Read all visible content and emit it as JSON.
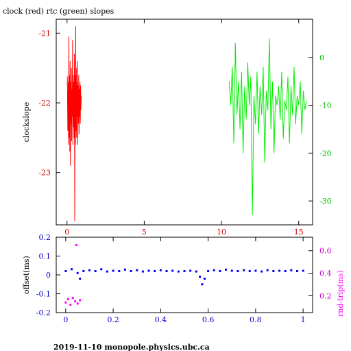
{
  "page": {
    "title": "clock (red) rtc (green) slopes",
    "footer": "2019-11-10  monopole.physics.ubc.ca"
  },
  "colors": {
    "clock": "#ff0000",
    "rtc": "#00ee00",
    "offset": "#0000ff",
    "rndtrip": "#ff00ff",
    "axis": "#000000"
  },
  "chart_data": [
    {
      "type": "line",
      "title": "clock (red) rtc (green) slopes",
      "xlabel": "",
      "ylabel": "clockslope",
      "xlim": [
        -0.7,
        15.9
      ],
      "ylim": [
        -23.75,
        -20.8
      ],
      "y2lim": [
        -35,
        8
      ],
      "xticks": [
        0,
        5,
        10,
        15
      ],
      "yticks": [
        -21,
        -22,
        -23
      ],
      "y2ticks": [
        0,
        -10,
        -20,
        -30
      ],
      "series": [
        {
          "name": "clock",
          "axis": "left",
          "color": "#ff0000",
          "x": [
            0.02,
            0.05,
            0.08,
            0.1,
            0.12,
            0.14,
            0.16,
            0.18,
            0.2,
            0.22,
            0.24,
            0.26,
            0.28,
            0.3,
            0.32,
            0.34,
            0.36,
            0.38,
            0.4,
            0.42,
            0.44,
            0.46,
            0.48,
            0.5,
            0.52,
            0.54,
            0.56,
            0.58,
            0.6,
            0.62,
            0.64,
            0.66,
            0.68,
            0.7,
            0.72,
            0.74,
            0.76,
            0.78,
            0.8,
            0.82,
            0.84,
            0.86,
            0.88,
            0.9,
            0.92
          ],
          "y": [
            -21.62,
            -22.4,
            -21.7,
            -22.6,
            -21.05,
            -22.5,
            -21.6,
            -22.7,
            -21.4,
            -22.9,
            -21.7,
            -22.3,
            -21.5,
            -22.55,
            -21.8,
            -22.2,
            -21.1,
            -22.6,
            -21.6,
            -22.35,
            -21.7,
            -22.5,
            -21.3,
            -23.7,
            -21.6,
            -22.6,
            -20.9,
            -22.4,
            -21.5,
            -22.5,
            -21.7,
            -22.2,
            -21.4,
            -22.6,
            -21.75,
            -22.3,
            -21.6,
            -22.45,
            -21.8,
            -22.2,
            -21.7,
            -22.3,
            -21.75,
            -22.1,
            -21.9
          ]
        },
        {
          "name": "rtc",
          "axis": "right",
          "color": "#00ee00",
          "x": [
            10.5,
            10.6,
            10.7,
            10.8,
            10.9,
            11.0,
            11.1,
            11.2,
            11.3,
            11.4,
            11.5,
            11.6,
            11.7,
            11.8,
            11.9,
            12.0,
            12.1,
            12.2,
            12.3,
            12.4,
            12.5,
            12.6,
            12.7,
            12.8,
            12.9,
            13.0,
            13.1,
            13.2,
            13.3,
            13.4,
            13.5,
            13.6,
            13.7,
            13.8,
            13.9,
            14.0,
            14.1,
            14.2,
            14.3,
            14.4,
            14.5,
            14.6,
            14.7,
            14.8,
            14.9,
            15.0,
            15.1,
            15.2,
            15.3,
            15.4,
            15.5
          ],
          "y": [
            -5,
            -10,
            -2,
            -18,
            3,
            -12,
            -5,
            -15,
            -3,
            -20,
            -6,
            -13,
            -1,
            -10,
            -4,
            -33,
            -8,
            -14,
            -3,
            -16,
            -6,
            -12,
            -2,
            -22,
            -7,
            -11,
            4,
            -15,
            -5,
            -20,
            -8,
            -10,
            -6,
            -13,
            -3,
            -17,
            -9,
            -11,
            -4,
            -18,
            -6,
            -12,
            -2,
            -14,
            -8,
            -10,
            -5,
            -16,
            -7,
            -11,
            -9
          ]
        }
      ]
    },
    {
      "type": "scatter",
      "title": "",
      "xlabel": "",
      "ylabel": "offset(ms)",
      "y2label": "rnd-trip(ms)",
      "xlim": [
        -0.04,
        1.04
      ],
      "ylim": [
        -0.2,
        0.2
      ],
      "y2lim": [
        0.05,
        0.72
      ],
      "xticks": [
        0,
        0.2,
        0.4,
        0.6,
        0.8,
        1
      ],
      "yticks": [
        0.2,
        0.1,
        0,
        -0.1,
        -0.2
      ],
      "y2ticks": [
        0.6,
        0.4,
        0.2
      ],
      "series": [
        {
          "name": "offset",
          "axis": "left",
          "color": "#0000ff",
          "x": [
            0,
            0.025,
            0.05,
            0.06,
            0.075,
            0.1,
            0.125,
            0.15,
            0.175,
            0.2,
            0.225,
            0.25,
            0.275,
            0.3,
            0.325,
            0.35,
            0.375,
            0.4,
            0.425,
            0.45,
            0.475,
            0.5,
            0.525,
            0.55,
            0.565,
            0.575,
            0.585,
            0.6,
            0.625,
            0.65,
            0.675,
            0.7,
            0.725,
            0.75,
            0.775,
            0.8,
            0.825,
            0.85,
            0.875,
            0.9,
            0.925,
            0.95,
            0.975,
            1
          ],
          "y": [
            0.02,
            0.03,
            0.01,
            -0.02,
            0.02,
            0.025,
            0.02,
            0.03,
            0.018,
            0.022,
            0.02,
            0.028,
            0.02,
            0.025,
            0.018,
            0.022,
            0.02,
            0.025,
            0.02,
            0.022,
            0.018,
            0.02,
            0.022,
            0.018,
            -0.01,
            -0.05,
            -0.02,
            0.02,
            0.025,
            0.02,
            0.028,
            0.022,
            0.02,
            0.025,
            0.02,
            0.022,
            0.018,
            0.025,
            0.02,
            0.022,
            0.02,
            0.025,
            0.02,
            0.022
          ]
        },
        {
          "name": "rnd-trip",
          "axis": "right",
          "color": "#ff00ff",
          "x": [
            0,
            0.01,
            0.02,
            0.03,
            0.04,
            0.045,
            0.05,
            0.06
          ],
          "y": [
            0.14,
            0.17,
            0.12,
            0.18,
            0.15,
            0.65,
            0.13,
            0.16
          ]
        }
      ]
    }
  ]
}
